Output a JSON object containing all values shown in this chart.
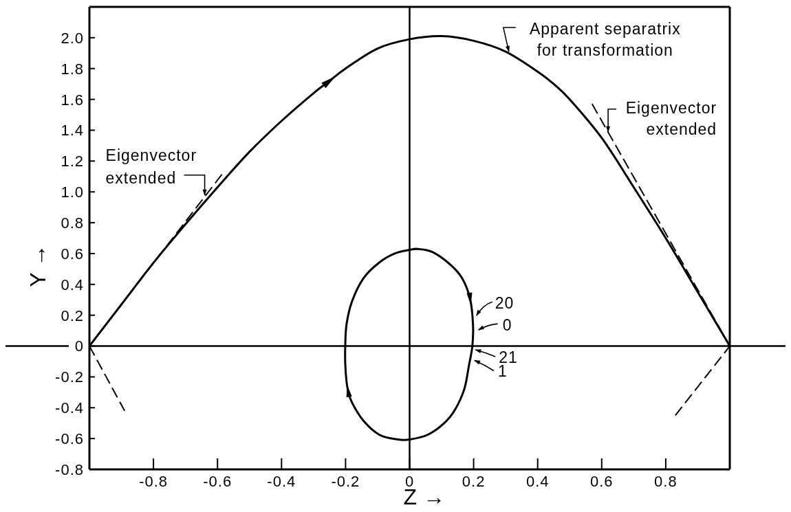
{
  "chart_data": {
    "type": "line",
    "xlabel": "Z →",
    "ylabel": "Y →",
    "xlim": [
      -1,
      1
    ],
    "ylim": [
      -0.8,
      2.2
    ],
    "xticks": [
      -0.8,
      -0.6,
      -0.4,
      -0.2,
      0,
      0.2,
      0.4,
      0.6,
      0.8
    ],
    "yticks": [
      -0.8,
      -0.6,
      -0.4,
      -0.2,
      0,
      0.2,
      0.4,
      0.6,
      0.8,
      {
        "value": 1,
        "label": "1.0"
      },
      1.2,
      1.4,
      1.6,
      1.8,
      {
        "value": 2,
        "label": "2.0"
      }
    ],
    "series": [
      {
        "color": "#000000",
        "x": [
          -1,
          -0.9,
          -0.8,
          -0.7,
          -0.6,
          -0.5,
          -0.4,
          -0.3,
          -0.25,
          -0.2,
          -0.1,
          0,
          0.1,
          0.2,
          0.3,
          0.4,
          0.45,
          0.5,
          0.6,
          0.7,
          0.8,
          0.9,
          1
        ],
        "values": [
          0,
          0.27,
          0.54,
          0.79,
          1.03,
          1.26,
          1.46,
          1.64,
          1.72,
          1.8,
          1.93,
          1.99,
          2.01,
          1.98,
          1.91,
          1.78,
          1.7,
          1.6,
          1.35,
          1.03,
          0.7,
          0.35,
          0
        ]
      },
      {
        "color": "#000000",
        "x": [
          0,
          0.025,
          0.071,
          0.128,
          0.164,
          0.189,
          0.198,
          0.196,
          0.185,
          0.171,
          0.142,
          0.107,
          0.056,
          0,
          -0.036,
          -0.094,
          -0.144,
          -0.18,
          -0.192,
          -0.197,
          -0.201,
          -0.201,
          -0.197,
          -0.18,
          -0.144,
          -0.094,
          -0.044,
          0,
          0.025
        ],
        "values": [
          0.624,
          0.63,
          0.61,
          0.527,
          0.44,
          0.306,
          0.14,
          0,
          -0.13,
          -0.278,
          -0.412,
          -0.502,
          -0.576,
          -0.606,
          -0.606,
          -0.576,
          -0.485,
          -0.366,
          -0.29,
          -0.231,
          -0.114,
          0,
          0.14,
          0.289,
          0.44,
          0.543,
          0.602,
          0.624,
          0.63
        ]
      },
      {
        "color": "#000000",
        "line_style": "dashed",
        "x": [
          -1,
          -0.58
        ],
        "values": [
          0,
          1.13
        ]
      },
      {
        "color": "#000000",
        "line_style": "dashed",
        "x": [
          -1,
          -0.89
        ],
        "values": [
          0,
          -0.42
        ]
      },
      {
        "color": "#000000",
        "line_style": "dashed",
        "x": [
          0.57,
          1
        ],
        "values": [
          1.57,
          0
        ]
      },
      {
        "color": "#000000",
        "line_style": "dashed",
        "x": [
          0.83,
          1
        ],
        "values": [
          -0.45,
          0
        ]
      }
    ],
    "ref_lines": [
      {
        "axis": "x",
        "value": 0,
        "color": "#000000"
      },
      {
        "axis": "y",
        "value": 0,
        "color": "#000000"
      }
    ],
    "annotations": [
      {
        "text": "Apparent separatrix\nfor transformation",
        "x": 0.31,
        "y": 1.91
      },
      {
        "text": "Eigenvector\nextended",
        "x": -0.64,
        "y": 0.98
      },
      {
        "text": "Eigenvector\nextended",
        "x": 0.62,
        "y": 1.39
      },
      {
        "text": "20",
        "x": 0.196,
        "y": 0.18
      },
      {
        "text": "0",
        "x": 0.198,
        "y": 0.1
      },
      {
        "text": "21",
        "x": 0.195,
        "y": -0.02
      },
      {
        "text": "1",
        "x": 0.19,
        "y": -0.08
      }
    ]
  }
}
